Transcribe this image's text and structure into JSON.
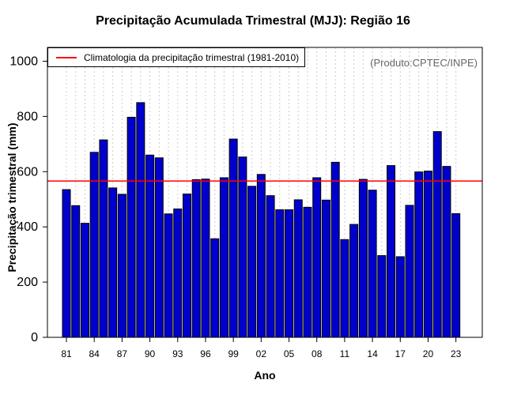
{
  "chart_data": {
    "type": "bar",
    "title": "Precipitação Acumulada Trimestral (MJJ): Região 16",
    "xlabel": "Ano",
    "ylabel": "Precipitação trimestral (mm)",
    "source": "(Produto:CPTEC/INPE)",
    "ylim": [
      0,
      1050
    ],
    "yticks": [
      0,
      200,
      400,
      600,
      800,
      1000
    ],
    "categories": [
      "81",
      "82",
      "83",
      "84",
      "85",
      "86",
      "87",
      "88",
      "89",
      "90",
      "91",
      "92",
      "93",
      "94",
      "95",
      "96",
      "97",
      "98",
      "99",
      "00",
      "01",
      "02",
      "03",
      "04",
      "05",
      "06",
      "07",
      "08",
      "09",
      "10",
      "11",
      "12",
      "13",
      "14",
      "15",
      "16",
      "17",
      "18",
      "19",
      "20",
      "21",
      "22",
      "23"
    ],
    "xtick_labels": [
      "81",
      "84",
      "87",
      "90",
      "93",
      "96",
      "99",
      "02",
      "05",
      "08",
      "11",
      "14",
      "17",
      "20",
      "23"
    ],
    "values": [
      535,
      477,
      413,
      670,
      715,
      541,
      518,
      797,
      850,
      660,
      650,
      447,
      465,
      519,
      571,
      573,
      357,
      578,
      718,
      653,
      547,
      590,
      513,
      462,
      462,
      498,
      471,
      578,
      497,
      634,
      354,
      409,
      572,
      533,
      296,
      622,
      292,
      478,
      599,
      602,
      745,
      619,
      448
    ],
    "series": [
      {
        "name": "Precipitação trimestral",
        "values": [
          535,
          477,
          413,
          670,
          715,
          541,
          518,
          797,
          850,
          660,
          650,
          447,
          465,
          519,
          571,
          573,
          357,
          578,
          718,
          653,
          547,
          590,
          513,
          462,
          462,
          498,
          471,
          578,
          497,
          634,
          354,
          409,
          572,
          533,
          296,
          622,
          292,
          478,
          599,
          602,
          745,
          619,
          448
        ]
      }
    ],
    "reference_line": {
      "label": "Climatologia da precipitação trimestral (1981-2010)",
      "value": 566
    },
    "legend_position": "top-left",
    "grid": "vertical dotted",
    "colors": {
      "bar": "#0000cc",
      "reference": "#ff0000",
      "grid": "#cccccc"
    }
  }
}
